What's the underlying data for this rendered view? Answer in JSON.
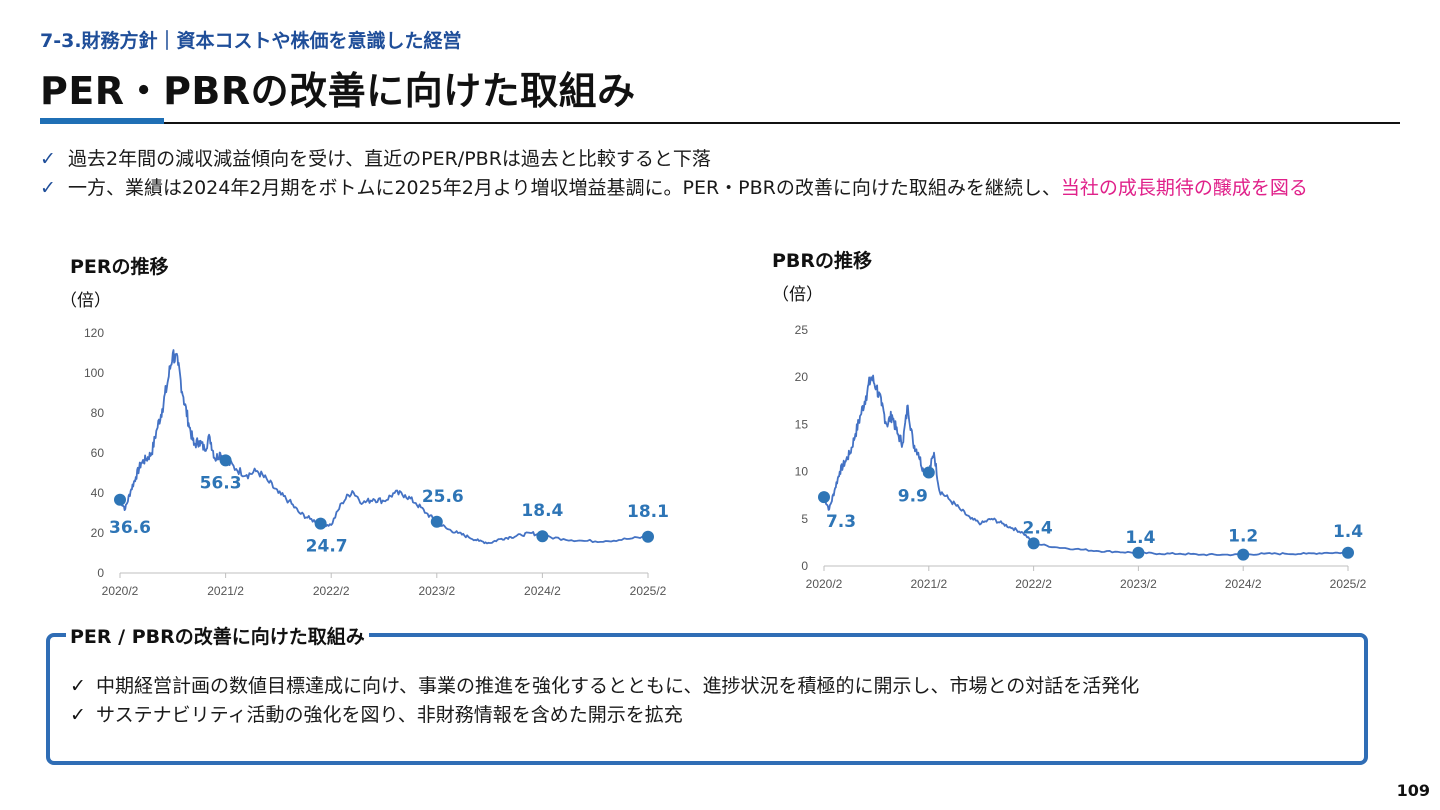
{
  "header": {
    "section": "7-3.財務方針｜資本コストや株価を意識した経営",
    "title": "PER・PBRの改善に向けた取組み"
  },
  "bullets": [
    {
      "text": "過去2年間の減収減益傾向を受け、直近のPER/PBRは過去と比較すると下落",
      "highlight": ""
    },
    {
      "text": "一方、業績は2024年2月期をボトムに2025年2月より増収増益基調に。PER・PBRの改善に向けた取組みを継続し、",
      "highlight": "当社の成長期待の醸成を図る"
    }
  ],
  "check_glyph": "✓",
  "charts": {
    "per": {
      "title": "PERの推移",
      "unit": "（倍）"
    },
    "pbr": {
      "title": "PBRの推移",
      "unit": "（倍）"
    }
  },
  "chart_data": [
    {
      "type": "line",
      "title": "PERの推移",
      "ylabel": "（倍）",
      "ylim": [
        0,
        120
      ],
      "yticks": [
        "0",
        "20",
        "40",
        "60",
        "80",
        "100",
        "120"
      ],
      "xticks": [
        "2020/2",
        "2021/2",
        "2022/2",
        "2023/2",
        "2024/2",
        "2025/2"
      ],
      "color": "#4472c4",
      "series": [
        {
          "x": [
            0,
            0.05,
            0.1,
            0.15,
            0.2,
            0.25,
            0.3,
            0.35,
            0.4,
            0.45,
            0.5,
            0.55,
            0.6,
            0.65,
            0.7,
            0.75,
            0.8,
            0.85,
            0.9,
            0.95,
            1.0,
            1.1,
            1.2,
            1.3,
            1.4,
            1.5,
            1.6,
            1.7,
            1.8,
            1.9,
            2.0,
            2.1,
            2.2,
            2.3,
            2.4,
            2.5,
            2.6,
            2.7,
            2.8,
            2.9,
            3.0,
            3.1,
            3.2,
            3.3,
            3.4,
            3.5,
            3.6,
            3.7,
            3.8,
            3.9,
            4.0,
            4.2,
            4.4,
            4.6,
            4.8,
            5.0
          ],
          "y": [
            36.6,
            32,
            41,
            48,
            55,
            57,
            60,
            72,
            82,
            95,
            110,
            104,
            88,
            75,
            64,
            66,
            62,
            68,
            57,
            60,
            56.3,
            52,
            49,
            51,
            46,
            40,
            36,
            30,
            27,
            24.7,
            24,
            35,
            41,
            35,
            37,
            36,
            40,
            39,
            35,
            30,
            25.6,
            22,
            20,
            18,
            16,
            15,
            17,
            18,
            19,
            20,
            18.4,
            17,
            16,
            16,
            17,
            18.1
          ]
        }
      ],
      "markers": [
        {
          "x": 0,
          "y": 36.6,
          "label": "36.6"
        },
        {
          "x": 1.0,
          "y": 56.3,
          "label": "56.3"
        },
        {
          "x": 1.9,
          "y": 24.7,
          "label": "24.7"
        },
        {
          "x": 3.0,
          "y": 25.6,
          "label": "25.6"
        },
        {
          "x": 4.0,
          "y": 18.4,
          "label": "18.4"
        },
        {
          "x": 5.0,
          "y": 18.1,
          "label": "18.1"
        }
      ]
    },
    {
      "type": "line",
      "title": "PBRの推移",
      "ylabel": "（倍）",
      "ylim": [
        0,
        25
      ],
      "yticks": [
        "0",
        "5",
        "10",
        "15",
        "20",
        "25"
      ],
      "xticks": [
        "2020/2",
        "2021/2",
        "2022/2",
        "2023/2",
        "2024/2",
        "2025/2"
      ],
      "color": "#4472c4",
      "series": [
        {
          "x": [
            0,
            0.05,
            0.1,
            0.15,
            0.2,
            0.25,
            0.3,
            0.35,
            0.4,
            0.45,
            0.5,
            0.55,
            0.6,
            0.65,
            0.7,
            0.75,
            0.8,
            0.85,
            0.9,
            0.95,
            1.0,
            1.05,
            1.1,
            1.2,
            1.3,
            1.4,
            1.5,
            1.6,
            1.7,
            1.8,
            1.9,
            2.0,
            2.2,
            2.4,
            2.6,
            2.8,
            3.0,
            3.2,
            3.4,
            3.6,
            3.8,
            4.0,
            4.2,
            4.4,
            4.6,
            4.8,
            5.0
          ],
          "y": [
            7.3,
            6,
            8,
            10,
            11,
            12,
            14,
            16,
            18,
            20,
            19,
            17,
            15,
            16,
            14,
            13,
            17,
            13,
            12,
            10,
            9.9,
            12,
            8,
            7,
            6,
            5,
            4.5,
            5,
            4.5,
            4,
            3.5,
            2.4,
            2.0,
            1.8,
            1.6,
            1.5,
            1.4,
            1.3,
            1.3,
            1.2,
            1.2,
            1.2,
            1.3,
            1.3,
            1.3,
            1.4,
            1.4
          ]
        }
      ],
      "markers": [
        {
          "x": 0,
          "y": 7.3,
          "label": "7.3"
        },
        {
          "x": 1.0,
          "y": 9.9,
          "label": "9.9"
        },
        {
          "x": 2.0,
          "y": 2.4,
          "label": "2.4"
        },
        {
          "x": 3.0,
          "y": 1.4,
          "label": "1.4"
        },
        {
          "x": 4.0,
          "y": 1.2,
          "label": "1.2"
        },
        {
          "x": 5.0,
          "y": 1.4,
          "label": "1.4"
        }
      ]
    }
  ],
  "initiatives": {
    "title": "PER / PBRの改善に向けた取組み",
    "items": [
      "中期経営計画の数値目標達成に向け、事業の推進を強化するとともに、進捗状況を積極的に開示し、市場との対話を活発化",
      "サステナビリティ活動の強化を図り、非財務情報を含めた開示を拡充"
    ]
  },
  "page_number": "109"
}
